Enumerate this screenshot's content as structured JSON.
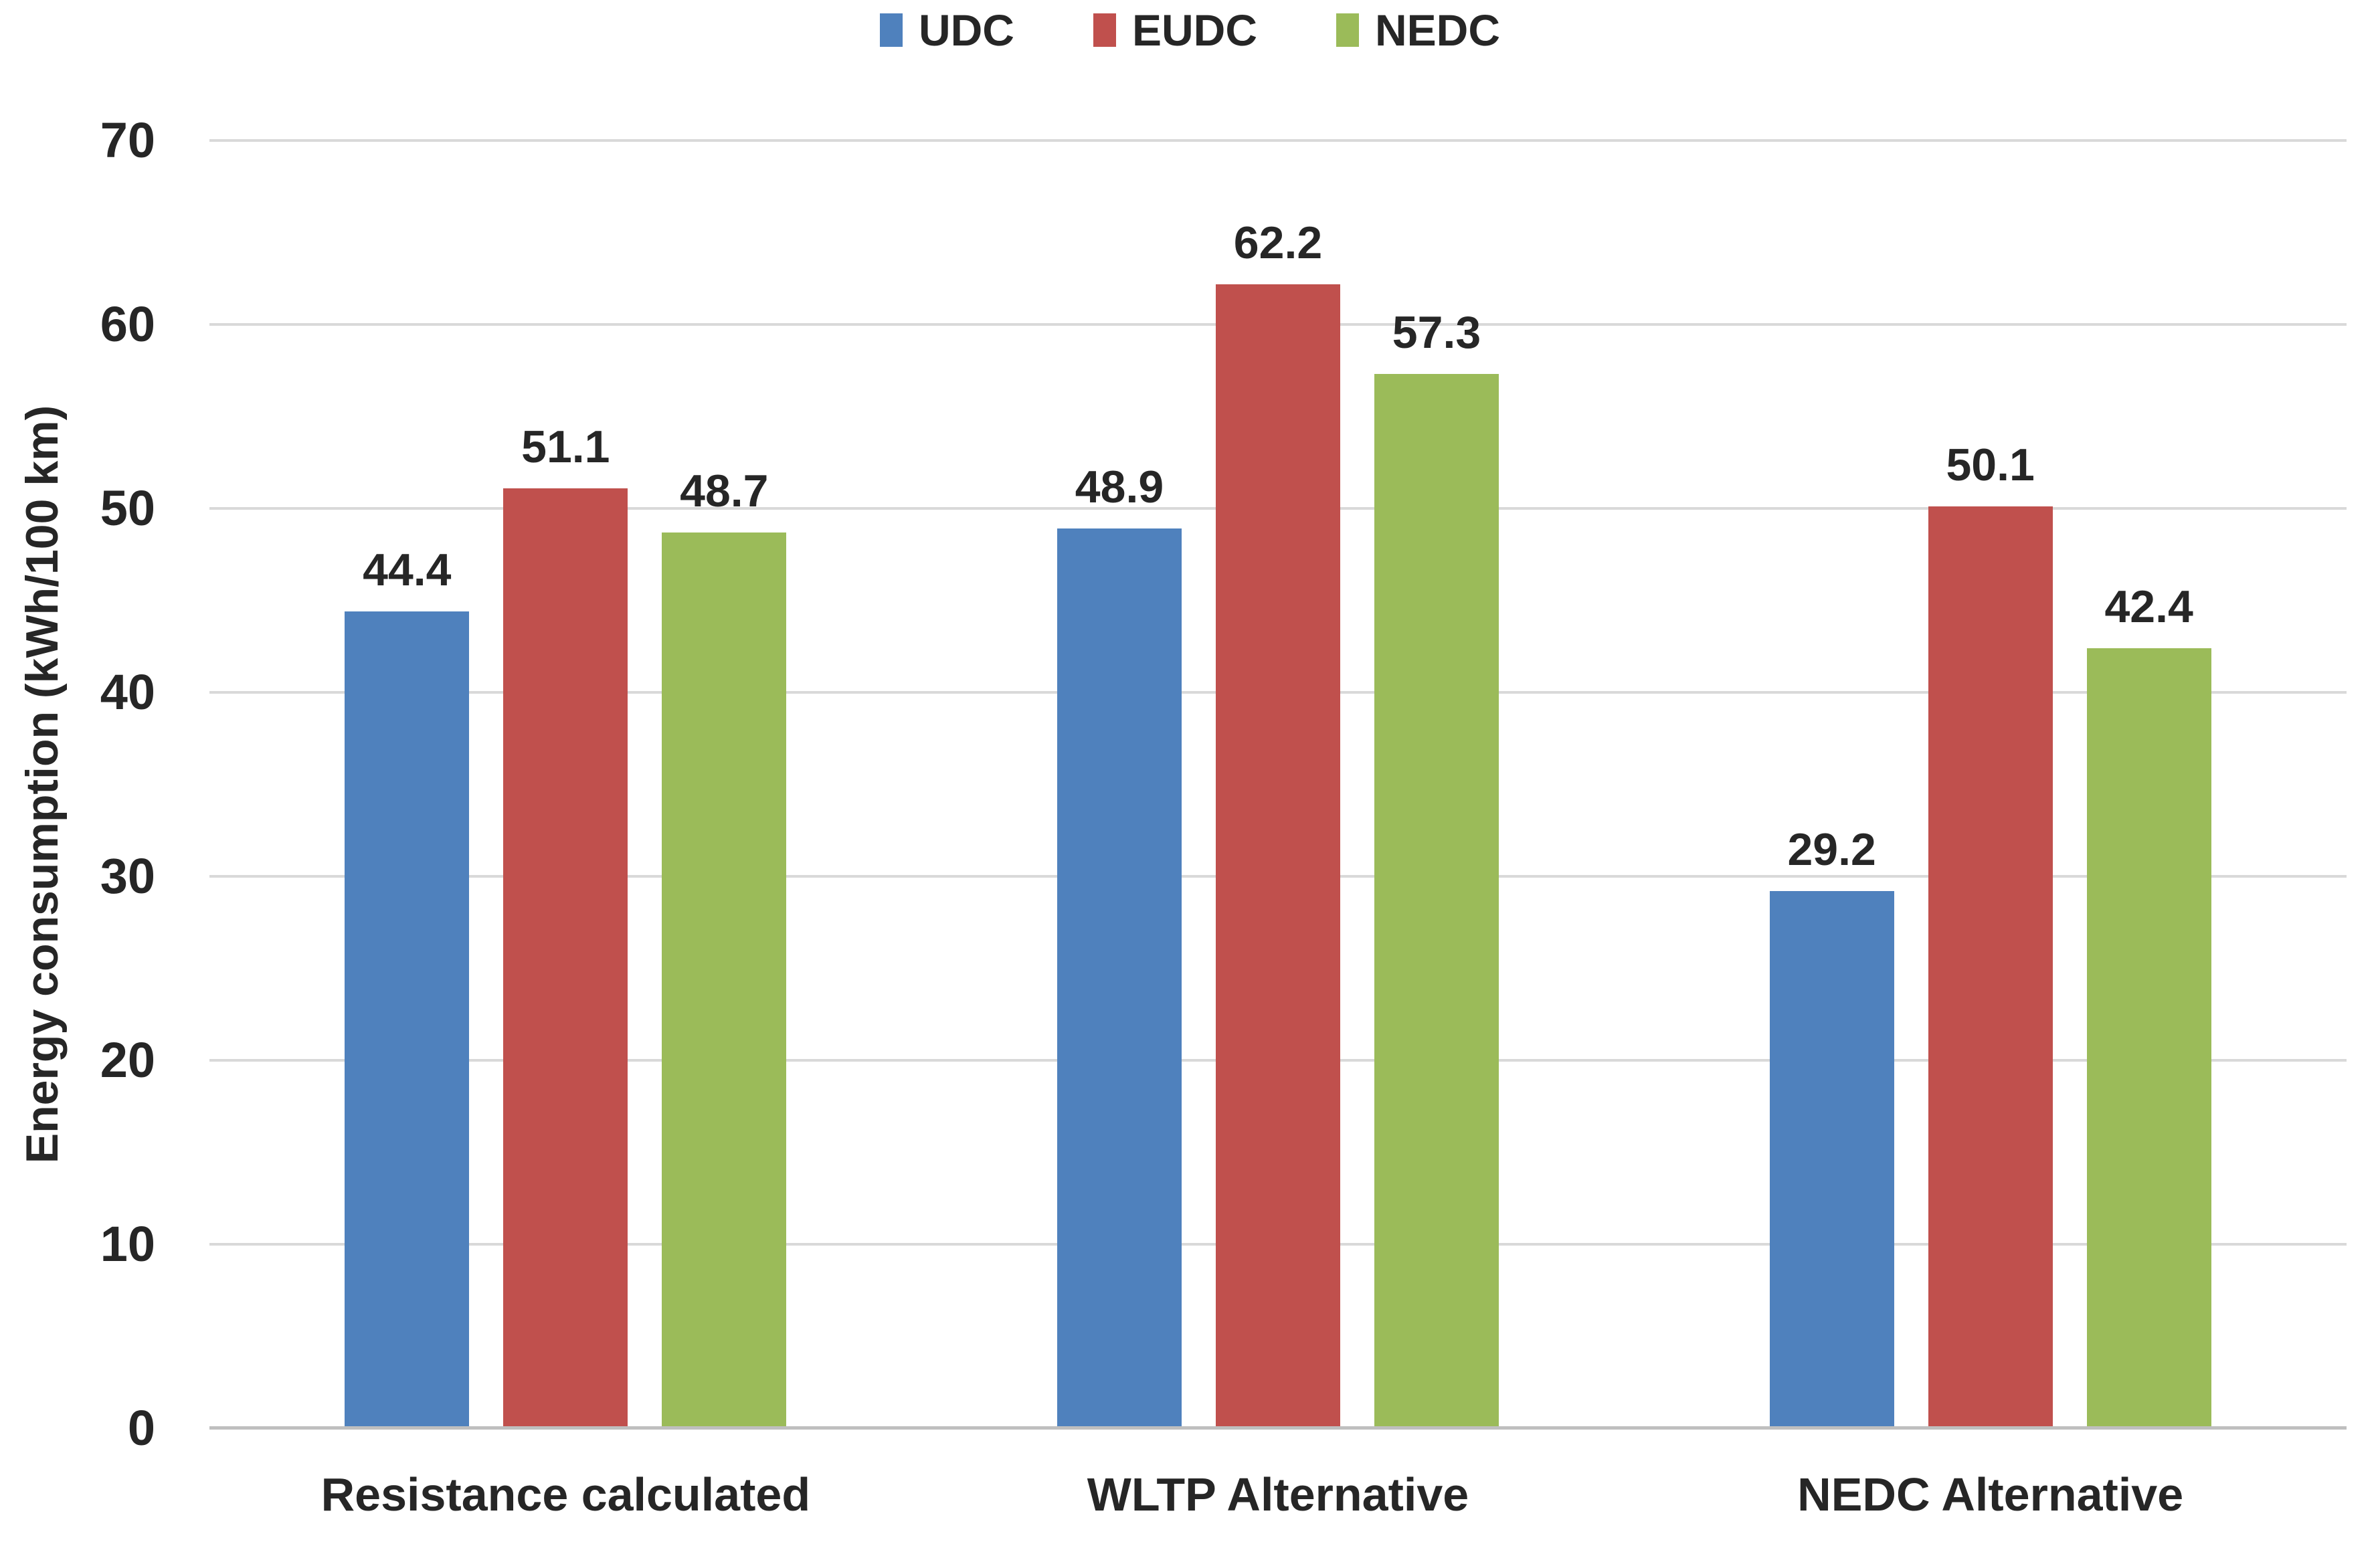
{
  "chart_data": {
    "type": "bar",
    "categories": [
      "Resistance calculated",
      "WLTP Alternative",
      "NEDC Alternative"
    ],
    "series": [
      {
        "name": "UDC",
        "color": "#4f81bd",
        "values": [
          44.4,
          48.9,
          29.2
        ]
      },
      {
        "name": "EUDC",
        "color": "#c0504d",
        "values": [
          51.1,
          62.2,
          50.1
        ]
      },
      {
        "name": "NEDC",
        "color": "#9bbb59",
        "values": [
          48.7,
          57.3,
          42.4
        ]
      }
    ],
    "xlabel": "",
    "ylabel": "Energy consumption (kWh/100 km)",
    "ylim": [
      0,
      70
    ],
    "yticks": [
      0,
      10,
      20,
      30,
      40,
      50,
      60,
      70
    ],
    "grid": true,
    "legend_position": "top-center",
    "value_labels_shown": true,
    "value_label_decimals": 1
  },
  "style": {
    "grid_color": "#d9d9d9",
    "axis_line_color": "#bfbfbf",
    "text_color": "#262626"
  }
}
